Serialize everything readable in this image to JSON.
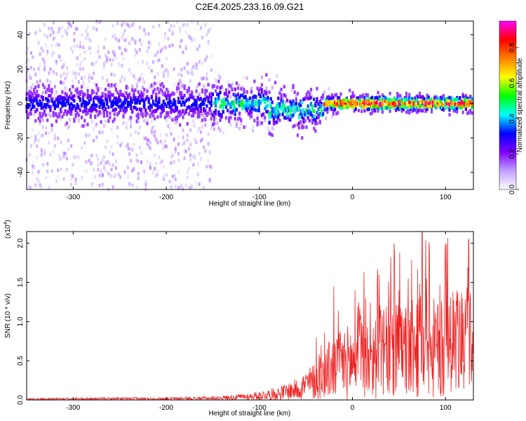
{
  "figure": {
    "title": "C2E4.2025.233.16.09.G21"
  },
  "chart_data": [
    {
      "type": "heatmap",
      "xlabel": "Height of straight line (km)",
      "ylabel": "Frequency (Hz)",
      "xlim": [
        -350,
        130
      ],
      "ylim": [
        -50,
        48
      ],
      "xticks": [
        -300,
        -200,
        -100,
        0,
        100
      ],
      "yticks": [
        -40,
        -20,
        0,
        20,
        40
      ],
      "colorbar": {
        "label": "Normalized spectral amplitude",
        "range": [
          0,
          0.95
        ],
        "ticks": [
          "0.0",
          "0.2",
          "0.4",
          "0.6",
          "0.8"
        ],
        "colormap": [
          "#ffffff",
          "#c0a0ff",
          "#8000ff",
          "#0000ff",
          "#00ffff",
          "#00ff00",
          "#ffff00",
          "#ff8000",
          "#ff0000",
          "#ff00ff"
        ]
      },
      "ridge": {
        "center_hz": 0,
        "description": "dominant energy band near 0 Hz, strongest for height > -30 km; broad low-amplitude scatter for height < -150 km"
      }
    },
    {
      "type": "line",
      "xlabel": "Height of straight line (km)",
      "ylabel": "SNR (10 * v/v)",
      "y_multiplier": "(x10",
      "y_multiplier_exp": "4",
      "xlim": [
        -350,
        130
      ],
      "ylim": [
        0,
        2.15
      ],
      "xticks": [
        -300,
        -200,
        -100,
        0,
        100
      ],
      "yticks": [
        "0.0",
        "0.5",
        "1.0",
        "1.5",
        "2.0"
      ],
      "color": "#ee2222",
      "envelope": {
        "x": [
          -350,
          -250,
          -200,
          -150,
          -110,
          -80,
          -60,
          -40,
          -25,
          -10,
          0,
          20,
          40,
          60,
          80,
          100,
          130
        ],
        "y": [
          0.02,
          0.03,
          0.03,
          0.04,
          0.08,
          0.15,
          0.25,
          0.45,
          0.7,
          0.85,
          0.9,
          1.0,
          1.1,
          1.15,
          1.2,
          1.15,
          1.2
        ]
      },
      "peaks": [
        {
          "x": -20,
          "y": 1.45
        },
        {
          "x": 75,
          "y": 2.15
        },
        {
          "x": 100,
          "y": 2.0
        },
        {
          "x": 125,
          "y": 2.05
        }
      ]
    }
  ]
}
